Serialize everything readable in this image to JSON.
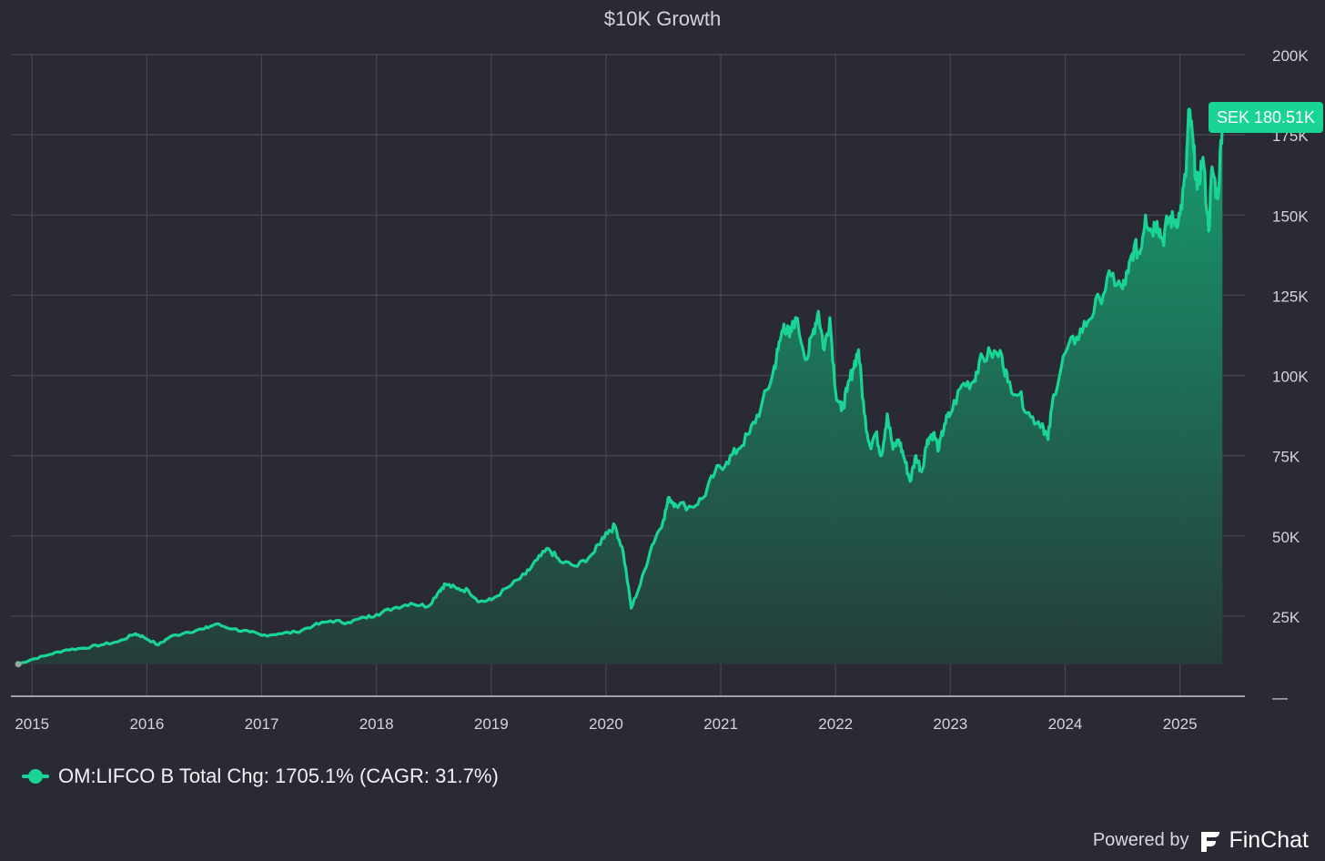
{
  "title": "$10K Growth",
  "colors": {
    "background": "#2a2a35",
    "line": "#19d494",
    "area_top": "#16a373",
    "area_bottom": "#253d3b",
    "grid": "#474751",
    "text": "#d4d4da",
    "badge": "#19d494"
  },
  "legend": {
    "label": "OM:LIFCO B Total Chg: 1705.1% (CAGR: 31.7%)",
    "icon": "line-dot-icon"
  },
  "end_badge": "SEK 180.51K",
  "branding": {
    "prefix": "Powered by",
    "name": "FinChat",
    "icon": "finchat-logo-icon"
  },
  "chart_data": {
    "type": "area",
    "title": "$10K Growth",
    "xlabel": "",
    "ylabel": "",
    "x_tick_labels": [
      "2015",
      "2016",
      "2017",
      "2018",
      "2019",
      "2020",
      "2021",
      "2022",
      "2023",
      "2024",
      "2025"
    ],
    "y_tick_labels": [
      "—",
      "25K",
      "50K",
      "75K",
      "100K",
      "125K",
      "150K",
      "175K",
      "200K"
    ],
    "ylim": [
      0,
      200000
    ],
    "grid": true,
    "legend_position": "bottom-left",
    "series": [
      {
        "name": "OM:LIFCO B",
        "x": [
          2014.88,
          2015.0,
          2015.15,
          2015.3,
          2015.45,
          2015.6,
          2015.75,
          2015.9,
          2015.97,
          2016.1,
          2016.2,
          2016.35,
          2016.5,
          2016.6,
          2016.75,
          2016.9,
          2017.0,
          2017.15,
          2017.3,
          2017.45,
          2017.6,
          2017.75,
          2017.9,
          2018.0,
          2018.15,
          2018.3,
          2018.45,
          2018.55,
          2018.6,
          2018.7,
          2018.8,
          2018.9,
          2019.0,
          2019.15,
          2019.3,
          2019.4,
          2019.5,
          2019.6,
          2019.75,
          2019.9,
          2020.0,
          2020.08,
          2020.15,
          2020.22,
          2020.3,
          2020.4,
          2020.5,
          2020.55,
          2020.6,
          2020.75,
          2020.85,
          2020.95,
          2021.05,
          2021.15,
          2021.25,
          2021.35,
          2021.45,
          2021.5,
          2021.55,
          2021.6,
          2021.65,
          2021.75,
          2021.8,
          2021.85,
          2021.9,
          2021.95,
          2022.0,
          2022.05,
          2022.1,
          2022.15,
          2022.2,
          2022.25,
          2022.3,
          2022.35,
          2022.4,
          2022.45,
          2022.5,
          2022.55,
          2022.6,
          2022.65,
          2022.7,
          2022.75,
          2022.8,
          2022.85,
          2022.9,
          2022.95,
          2023.0,
          2023.1,
          2023.2,
          2023.25,
          2023.35,
          2023.45,
          2023.5,
          2023.6,
          2023.7,
          2023.8,
          2023.85,
          2023.9,
          2024.0,
          2024.1,
          2024.2,
          2024.3,
          2024.4,
          2024.5,
          2024.55,
          2024.6,
          2024.65,
          2024.7,
          2024.75,
          2024.8,
          2024.85,
          2024.9,
          2024.95,
          2025.0,
          2025.05,
          2025.08,
          2025.12,
          2025.15,
          2025.2,
          2025.25,
          2025.28,
          2025.33,
          2025.37
        ],
        "y": [
          10000,
          11500,
          13000,
          14500,
          15000,
          16000,
          17000,
          19500,
          18500,
          16000,
          18500,
          20000,
          21000,
          22500,
          21000,
          20000,
          19000,
          19500,
          20000,
          22000,
          23500,
          23000,
          24500,
          25500,
          27500,
          29000,
          28000,
          33000,
          35000,
          33500,
          33000,
          29500,
          30000,
          34000,
          38000,
          42500,
          46000,
          42000,
          40500,
          45000,
          51000,
          53000,
          45000,
          27500,
          35000,
          47000,
          55000,
          62000,
          60000,
          59000,
          62000,
          70000,
          73000,
          77000,
          82000,
          90000,
          100000,
          108000,
          116000,
          112000,
          118000,
          105000,
          113000,
          120000,
          108000,
          118000,
          95000,
          89000,
          95000,
          102000,
          108000,
          88000,
          78000,
          82000,
          75000,
          88000,
          77000,
          80000,
          74000,
          67000,
          75000,
          70000,
          80000,
          82000,
          77000,
          85000,
          88000,
          97000,
          98000,
          104000,
          107000,
          106000,
          98000,
          94000,
          87000,
          85000,
          80000,
          94000,
          107000,
          112000,
          117000,
          124000,
          131000,
          127000,
          132000,
          140000,
          138000,
          150000,
          145000,
          148000,
          142000,
          149000,
          148000,
          150000,
          162000,
          183000,
          170000,
          158000,
          168000,
          145000,
          165000,
          155000,
          180510
        ]
      }
    ]
  }
}
